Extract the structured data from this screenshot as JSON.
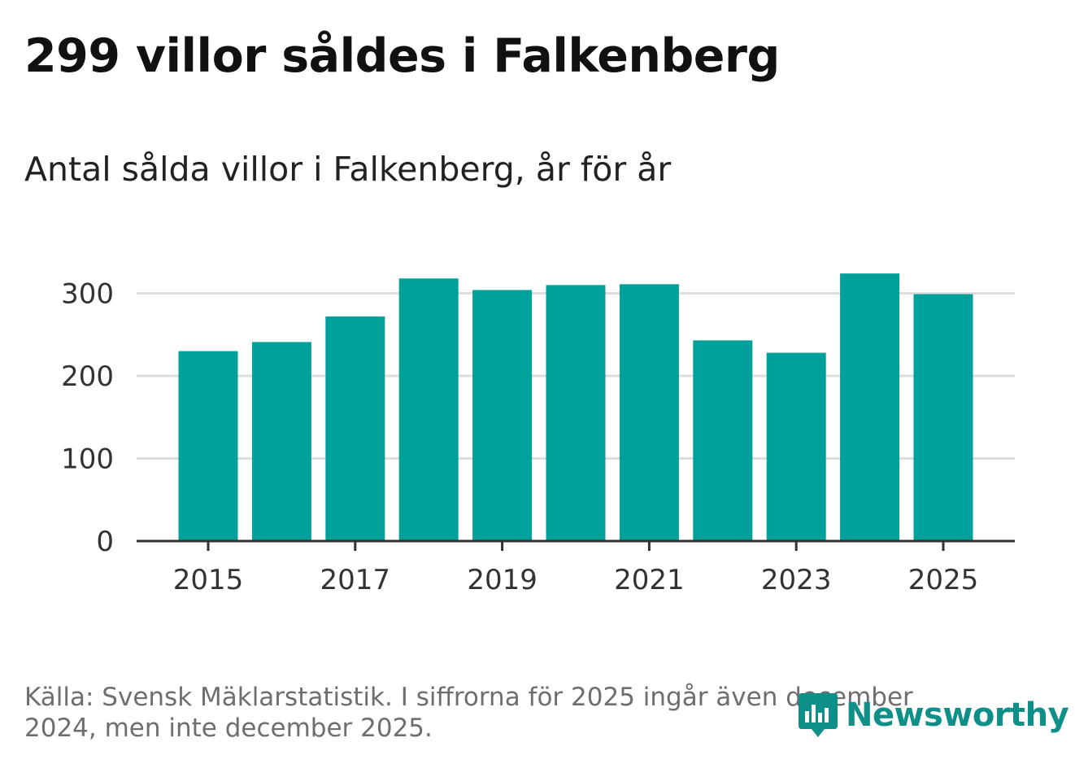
{
  "title": "299 villor såldes i Falkenberg",
  "subtitle": "Antal sålda villor i Falkenberg, år för år",
  "source_text": "Källa: Svensk Mäklarstatistik. I siffrorna för 2025 ingår även december 2024, men inte december 2025.",
  "brand": {
    "name": "Newsworthy",
    "color": "#0e8f88"
  },
  "colors": {
    "bar": "#00a19a",
    "grid": "#dddddd",
    "axis": "#333333"
  },
  "chart_data": {
    "type": "bar",
    "title": "299 villor såldes i Falkenberg",
    "subtitle": "Antal sålda villor i Falkenberg, år för år",
    "xlabel": "",
    "ylabel": "",
    "categories": [
      "2015",
      "2016",
      "2017",
      "2018",
      "2019",
      "2020",
      "2021",
      "2022",
      "2023",
      "2024",
      "2025"
    ],
    "values": [
      230,
      241,
      272,
      318,
      304,
      310,
      311,
      243,
      228,
      324,
      299
    ],
    "x_tick_labels": [
      "2015",
      "2017",
      "2019",
      "2021",
      "2023",
      "2025"
    ],
    "y_ticks": [
      0,
      100,
      200,
      300
    ],
    "ylim": [
      0,
      330
    ],
    "grid": true,
    "legend": "none"
  }
}
